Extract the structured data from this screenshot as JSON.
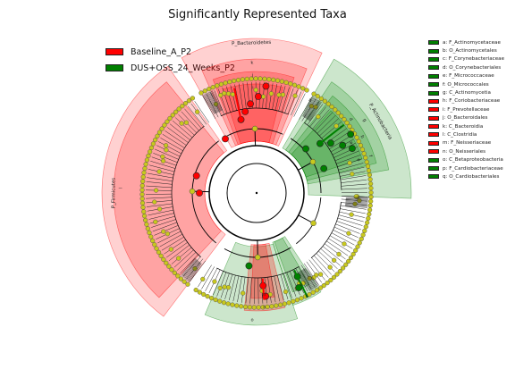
{
  "title": "Significantly Represented Taxa",
  "colors": {
    "baseline": "#ff0000",
    "dus": "#008000",
    "node_neutral": "#c8c81e",
    "edge": "#000000"
  },
  "legend": [
    {
      "label": "Baseline_A_P2",
      "color": "#ff0000"
    },
    {
      "label": "DUS+OSS_24_Weeks_P2",
      "color": "#008000"
    }
  ],
  "taxa_legend": [
    {
      "label": "a: F_Actinomycetaceae",
      "color": "#008000"
    },
    {
      "label": "b: O_Actinomycetales",
      "color": "#008000"
    },
    {
      "label": "c: F_Corynebacteriaceae",
      "color": "#008000"
    },
    {
      "label": "d: O_Corynebacteriales",
      "color": "#008000"
    },
    {
      "label": "e: F_Micrococcaceae",
      "color": "#008000"
    },
    {
      "label": "f: O_Micrococcales",
      "color": "#008000"
    },
    {
      "label": "g: C_Actinomycetia",
      "color": "#008000"
    },
    {
      "label": "h: F_Coriobacteriaceae",
      "color": "#ff0000"
    },
    {
      "label": "i: F_Prevotellaceae",
      "color": "#ff0000"
    },
    {
      "label": "j: O_Bacteroidales",
      "color": "#ff0000"
    },
    {
      "label": "k: C_Bacteroidia",
      "color": "#ff0000"
    },
    {
      "label": "l: C_Clostridia",
      "color": "#ff0000"
    },
    {
      "label": "m: F_Neisseriaceae",
      "color": "#ff0000"
    },
    {
      "label": "n: O_Neisseriales",
      "color": "#ff0000"
    },
    {
      "label": "o: C_Betaproteobacteria",
      "color": "#008000"
    },
    {
      "label": "p: F_Cardiobacteriaceae",
      "color": "#008000"
    },
    {
      "label": "q: O_Cardiobacteriales",
      "color": "#008000"
    }
  ],
  "clade_labels": {
    "bacteroidetes": "P_Bacteroidetes",
    "actinobacteria": "P_Actinobacteria",
    "firmicutes": "P_Firmicutes",
    "k": "k",
    "l": "l",
    "a": "a",
    "b": "b",
    "c": "c",
    "d": "d",
    "e": "e",
    "f": "f",
    "g": "g",
    "h": "h",
    "i": "i",
    "j": "j",
    "m": "m",
    "n": "n",
    "o": "o",
    "p": "p",
    "q": "q"
  }
}
